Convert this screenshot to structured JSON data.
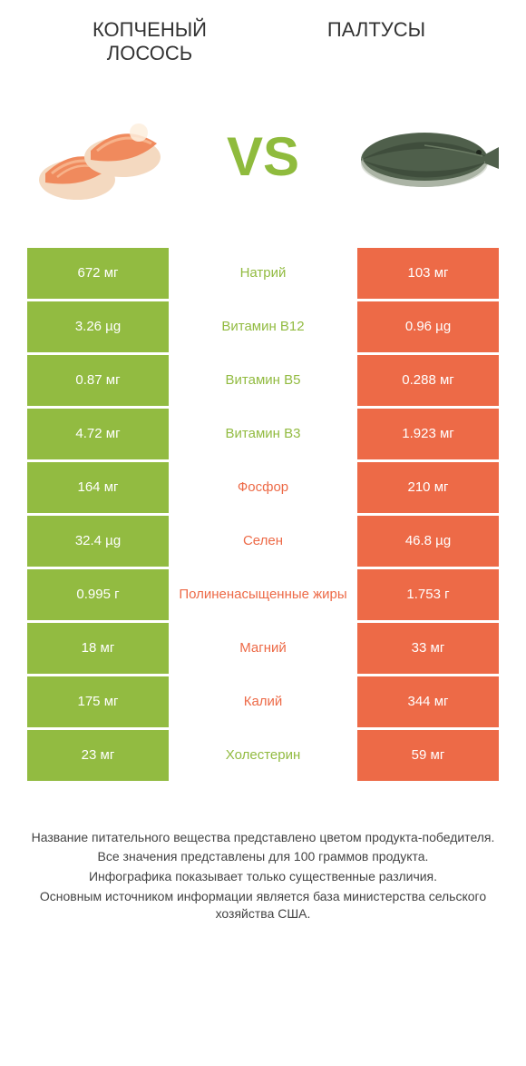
{
  "header": {
    "left_title": "КОПЧЕНЫЙ\nЛОСОСЬ",
    "right_title": "ПАЛТУСЫ",
    "vs": "VS"
  },
  "colors": {
    "green": "#92bb41",
    "orange": "#ed6a47",
    "vs_color": "#8fbb3d"
  },
  "rows": [
    {
      "left": "672 мг",
      "label": "Натрий",
      "right": "103 мг",
      "winner": "left"
    },
    {
      "left": "3.26 µg",
      "label": "Витамин B12",
      "right": "0.96 µg",
      "winner": "left"
    },
    {
      "left": "0.87 мг",
      "label": "Витамин B5",
      "right": "0.288 мг",
      "winner": "left"
    },
    {
      "left": "4.72 мг",
      "label": "Витамин B3",
      "right": "1.923 мг",
      "winner": "left"
    },
    {
      "left": "164 мг",
      "label": "Фосфор",
      "right": "210 мг",
      "winner": "right"
    },
    {
      "left": "32.4 µg",
      "label": "Селен",
      "right": "46.8 µg",
      "winner": "right"
    },
    {
      "left": "0.995 г",
      "label": "Полиненасыщенные жиры",
      "right": "1.753 г",
      "winner": "right"
    },
    {
      "left": "18 мг",
      "label": "Магний",
      "right": "33 мг",
      "winner": "right"
    },
    {
      "left": "175 мг",
      "label": "Калий",
      "right": "344 мг",
      "winner": "right"
    },
    {
      "left": "23 мг",
      "label": "Холестерин",
      "right": "59 мг",
      "winner": "left"
    }
  ],
  "footer": [
    "Название питательного вещества представлено цветом продукта-победителя.",
    "Все значения представлены для 100 граммов продукта.",
    "Инфографика показывает только существенные различия.",
    "Основным источником информации является база министерства сельского хозяйства США."
  ]
}
